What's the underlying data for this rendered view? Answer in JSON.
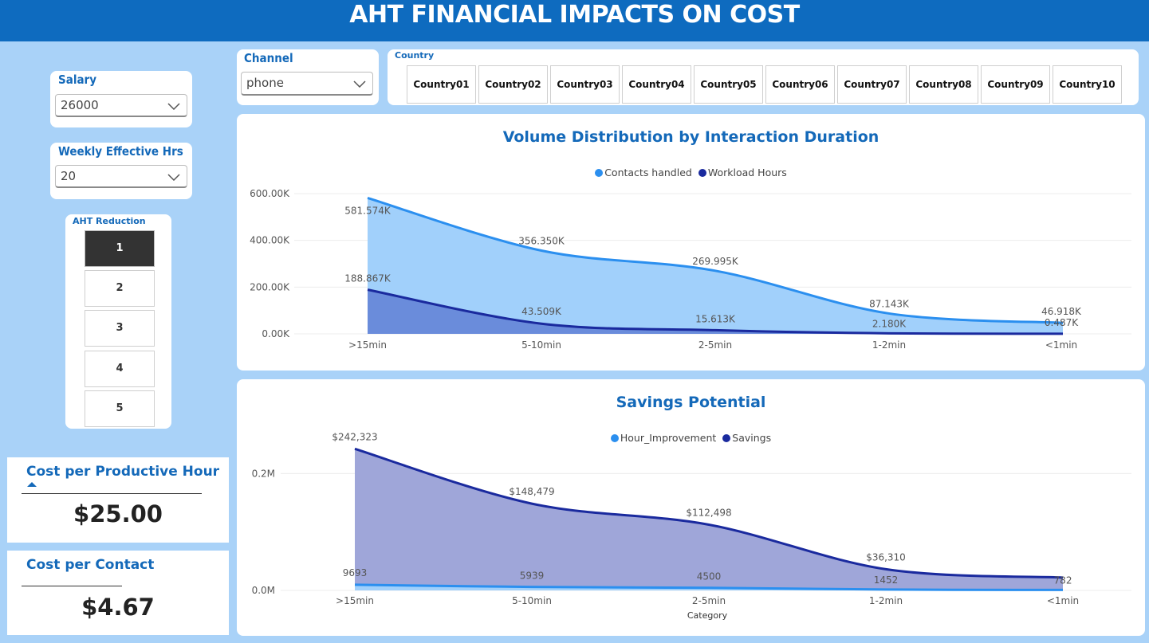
{
  "header": {
    "title": "AHT FINANCIAL IMPACTS ON COST"
  },
  "slicers": {
    "salary": {
      "label": "Salary",
      "value": "26000"
    },
    "weekly_hours": {
      "label": "Weekly Effective Hrs",
      "value": "20"
    },
    "aht_reduction": {
      "label": "AHT Reduction",
      "options": [
        "1",
        "2",
        "3",
        "4",
        "5"
      ],
      "selected": "1"
    },
    "channel": {
      "label": "Channel",
      "value": "phone"
    },
    "country": {
      "label": "Country",
      "options": [
        "Country01",
        "Country02",
        "Country03",
        "Country04",
        "Country05",
        "Country06",
        "Country07",
        "Country08",
        "Country09",
        "Country10"
      ]
    }
  },
  "kpis": {
    "cost_per_hour": {
      "label": "Cost per Productive Hour",
      "value": "$25.00"
    },
    "cost_per_contact": {
      "label": "Cost per Contact",
      "value": "$4.67"
    }
  },
  "colors": {
    "header": "#0e6bbf",
    "background": "#a9d2f8",
    "title": "#1469b9",
    "light_blue": "#2b8fef",
    "dark_blue": "#1a2a9e"
  },
  "chart_data": [
    {
      "type": "area",
      "title": "Volume Distribution by Interaction Duration",
      "categories": [
        ">15min",
        "5-10min",
        "2-5min",
        "1-2min",
        "<1min"
      ],
      "y_ticks": [
        "600.00K",
        "400.00K",
        "200.00K",
        "0.00K"
      ],
      "ylim": [
        0,
        600000
      ],
      "legend_position": "top-center",
      "series": [
        {
          "name": "Contacts handled",
          "values": [
            581574,
            356350,
            269995,
            87143,
            46918
          ],
          "labels": [
            "581.574K",
            "356.350K",
            "269.995K",
            "87.143K",
            "46.918K"
          ],
          "color": "#2b8fef"
        },
        {
          "name": "Workload Hours",
          "values": [
            188867,
            43509,
            15613,
            2180,
            487
          ],
          "labels": [
            "188.867K",
            "43.509K",
            "15.613K",
            "2.180K",
            "0.487K"
          ],
          "color": "#1a2a9e"
        }
      ]
    },
    {
      "type": "area",
      "title": "Savings Potential",
      "xlabel": "Category",
      "categories": [
        ">15min",
        "5-10min",
        "2-5min",
        "1-2min",
        "<1min"
      ],
      "y_ticks": [
        "0.2M",
        "0.0M"
      ],
      "ylim": [
        0,
        300000
      ],
      "legend_position": "top-center",
      "series": [
        {
          "name": "Hour_Improvement",
          "values": [
            9693,
            5939,
            4500,
            1452,
            782
          ],
          "labels": [
            "9693",
            "5939",
            "4500",
            "1452",
            "782"
          ],
          "color": "#2b8fef"
        },
        {
          "name": "Savings",
          "values": [
            242323,
            148479,
            112498,
            36310,
            22000
          ],
          "labels": [
            "$242,323",
            "$148,479",
            "$112,498",
            "$36,310",
            ""
          ],
          "color": "#1a2a9e"
        }
      ]
    }
  ]
}
